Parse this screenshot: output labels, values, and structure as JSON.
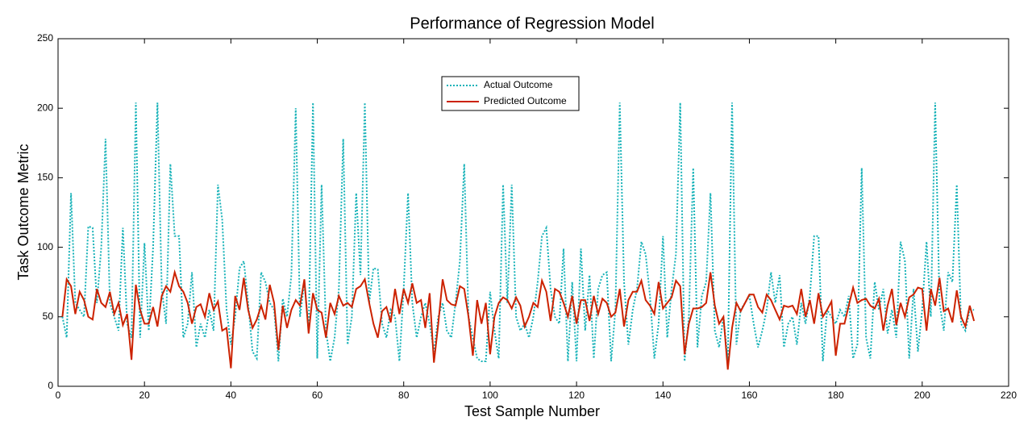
{
  "chart_data": {
    "type": "line",
    "title": "Performance of Regression Model",
    "xlabel": "Test Sample Number",
    "ylabel": "Task Outcome Metric",
    "xlim": [
      0,
      220
    ],
    "xticks": [
      0,
      20,
      40,
      60,
      80,
      100,
      120,
      140,
      160,
      180,
      200,
      220
    ],
    "ylim": [
      0,
      250
    ],
    "yticks": [
      0,
      50,
      100,
      150,
      200,
      250
    ],
    "grid": false,
    "legend": "upper center",
    "x": [
      1,
      2,
      3,
      4,
      5,
      6,
      7,
      8,
      9,
      10,
      11,
      12,
      13,
      14,
      15,
      16,
      17,
      18,
      19,
      20,
      21,
      22,
      23,
      24,
      25,
      26,
      27,
      28,
      29,
      30,
      31,
      32,
      33,
      34,
      35,
      36,
      37,
      38,
      39,
      40,
      41,
      42,
      43,
      44,
      45,
      46,
      47,
      48,
      49,
      50,
      51,
      52,
      53,
      54,
      55,
      56,
      57,
      58,
      59,
      60,
      61,
      62,
      63,
      64,
      65,
      66,
      67,
      68,
      69,
      70,
      71,
      72,
      73,
      74,
      75,
      76,
      77,
      78,
      79,
      80,
      81,
      82,
      83,
      84,
      85,
      86,
      87,
      88,
      89,
      90,
      91,
      92,
      93,
      94,
      95,
      96,
      97,
      98,
      99,
      100,
      101,
      102,
      103,
      104,
      105,
      106,
      107,
      108,
      109,
      110,
      111,
      112,
      113,
      114,
      115,
      116,
      117,
      118,
      119,
      120,
      121,
      122,
      123,
      124,
      125,
      126,
      127,
      128,
      129,
      130,
      131,
      132,
      133,
      134,
      135,
      136,
      137,
      138,
      139,
      140,
      141,
      142,
      143,
      144,
      145,
      146,
      147,
      148,
      149,
      150,
      151,
      152,
      153,
      154,
      155,
      156,
      157,
      158,
      159,
      160,
      161,
      162,
      163,
      164,
      165,
      166,
      167,
      168,
      169,
      170,
      171,
      172,
      173,
      174,
      175,
      176,
      177,
      178,
      179,
      180,
      181,
      182,
      183,
      184,
      185,
      186,
      187,
      188,
      189,
      190,
      191,
      192,
      193,
      194,
      195,
      196,
      197,
      198,
      199,
      200,
      201,
      202,
      203,
      204,
      205,
      206,
      207,
      208,
      209,
      210,
      211,
      212
    ],
    "series": [
      {
        "name": "Actual Outcome",
        "color": "#17b2b8",
        "dash": "dotted",
        "values": [
          50,
          35,
          139,
          60,
          55,
          50,
          115,
          114,
          60,
          100,
          178,
          60,
          50,
          40,
          114,
          45,
          35,
          204,
          35,
          103,
          40,
          100,
          204,
          70,
          45,
          160,
          108,
          108,
          35,
          45,
          82,
          28,
          45,
          35,
          55,
          40,
          145,
          120,
          55,
          30,
          50,
          85,
          90,
          60,
          25,
          20,
          82,
          75,
          60,
          55,
          18,
          63,
          50,
          80,
          200,
          50,
          75,
          40,
          204,
          20,
          145,
          40,
          18,
          35,
          70,
          178,
          30,
          50,
          139,
          80,
          204,
          60,
          85,
          84,
          45,
          35,
          55,
          50,
          18,
          70,
          139,
          60,
          35,
          50,
          60,
          45,
          25,
          50,
          60,
          40,
          35,
          60,
          90,
          160,
          50,
          35,
          20,
          18,
          18,
          68,
          40,
          20,
          145,
          60,
          145,
          50,
          40,
          45,
          35,
          50,
          75,
          108,
          114,
          70,
          50,
          45,
          99,
          18,
          75,
          18,
          99,
          40,
          80,
          20,
          70,
          80,
          82,
          18,
          55,
          204,
          75,
          30,
          55,
          70,
          104,
          95,
          65,
          20,
          45,
          108,
          35,
          70,
          95,
          204,
          18,
          50,
          157,
          28,
          65,
          75,
          139,
          40,
          28,
          50,
          18,
          204,
          30,
          55,
          60,
          65,
          45,
          28,
          40,
          55,
          82,
          60,
          80,
          28,
          45,
          50,
          30,
          60,
          45,
          65,
          108,
          108,
          18,
          55,
          50,
          45,
          55,
          50,
          65,
          20,
          30,
          157,
          35,
          20,
          75,
          55,
          70,
          38,
          55,
          35,
          104,
          90,
          20,
          70,
          25,
          55,
          104,
          50,
          204,
          60,
          40,
          82,
          75,
          145,
          45,
          40,
          55,
          55
        ]
      },
      {
        "name": "Predicted Outcome",
        "color": "#cc2200",
        "dash": "solid",
        "values": [
          50,
          77,
          72,
          52,
          68,
          62,
          50,
          48,
          70,
          60,
          57,
          68,
          52,
          60,
          44,
          52,
          19,
          73,
          55,
          45,
          45,
          57,
          43,
          65,
          72,
          68,
          82,
          72,
          68,
          60,
          45,
          57,
          59,
          50,
          67,
          55,
          61,
          40,
          42,
          13,
          65,
          55,
          78,
          55,
          42,
          48,
          58,
          48,
          73,
          60,
          26,
          58,
          42,
          55,
          62,
          58,
          77,
          38,
          67,
          55,
          53,
          35,
          60,
          52,
          65,
          58,
          60,
          57,
          70,
          72,
          77,
          60,
          45,
          35,
          54,
          57,
          46,
          70,
          52,
          70,
          60,
          74,
          60,
          62,
          42,
          67,
          17,
          45,
          77,
          62,
          59,
          58,
          72,
          70,
          50,
          22,
          62,
          45,
          60,
          23,
          50,
          60,
          64,
          62,
          56,
          64,
          58,
          43,
          50,
          60,
          57,
          76,
          68,
          47,
          70,
          68,
          60,
          50,
          65,
          45,
          62,
          62,
          47,
          65,
          52,
          63,
          60,
          50,
          53,
          70,
          43,
          62,
          68,
          68,
          76,
          62,
          58,
          52,
          75,
          56,
          60,
          64,
          76,
          72,
          23,
          45,
          56,
          56,
          57,
          60,
          82,
          58,
          45,
          50,
          12,
          42,
          60,
          54,
          60,
          66,
          66,
          57,
          53,
          66,
          62,
          55,
          48,
          58,
          57,
          58,
          52,
          70,
          50,
          62,
          45,
          67,
          50,
          55,
          61,
          22,
          45,
          45,
          58,
          71,
          60,
          62,
          63,
          58,
          56,
          63,
          40,
          58,
          70,
          44,
          60,
          50,
          64,
          66,
          71,
          70,
          40,
          70,
          58,
          78,
          54,
          56,
          46,
          69,
          50,
          43,
          58,
          47
        ]
      }
    ]
  }
}
